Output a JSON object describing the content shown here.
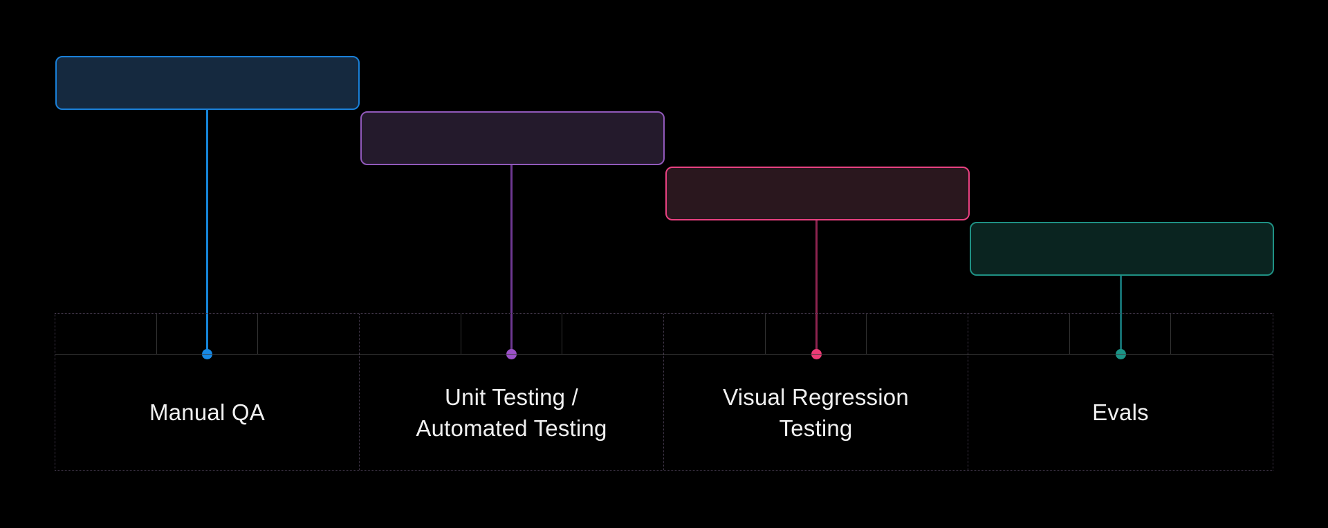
{
  "page": {
    "background": "#000000"
  },
  "tracks": [
    {
      "id": "manual-qa",
      "label": "Manual QA",
      "colors": {
        "fill": "#15293F",
        "border": "#1A80D8",
        "line": "#1585D8",
        "dot": "#1789E5"
      }
    },
    {
      "id": "unit-automated-testing",
      "label": "Unit Testing /\nAutomated Testing",
      "colors": {
        "fill": "#241A2C",
        "border": "#9159BB",
        "line": "#6E3892",
        "dot": "#9B51C8"
      }
    },
    {
      "id": "visual-regression-testing",
      "label": "Visual Regression\nTesting",
      "colors": {
        "fill": "#2A171E",
        "border": "#E84181",
        "line": "#8E2450",
        "dot": "#EE3B76"
      }
    },
    {
      "id": "evals",
      "label": "Evals",
      "colors": {
        "fill": "#0A2420",
        "border": "#1F9184",
        "line": "#156E70",
        "dot": "#1B9487"
      }
    }
  ]
}
